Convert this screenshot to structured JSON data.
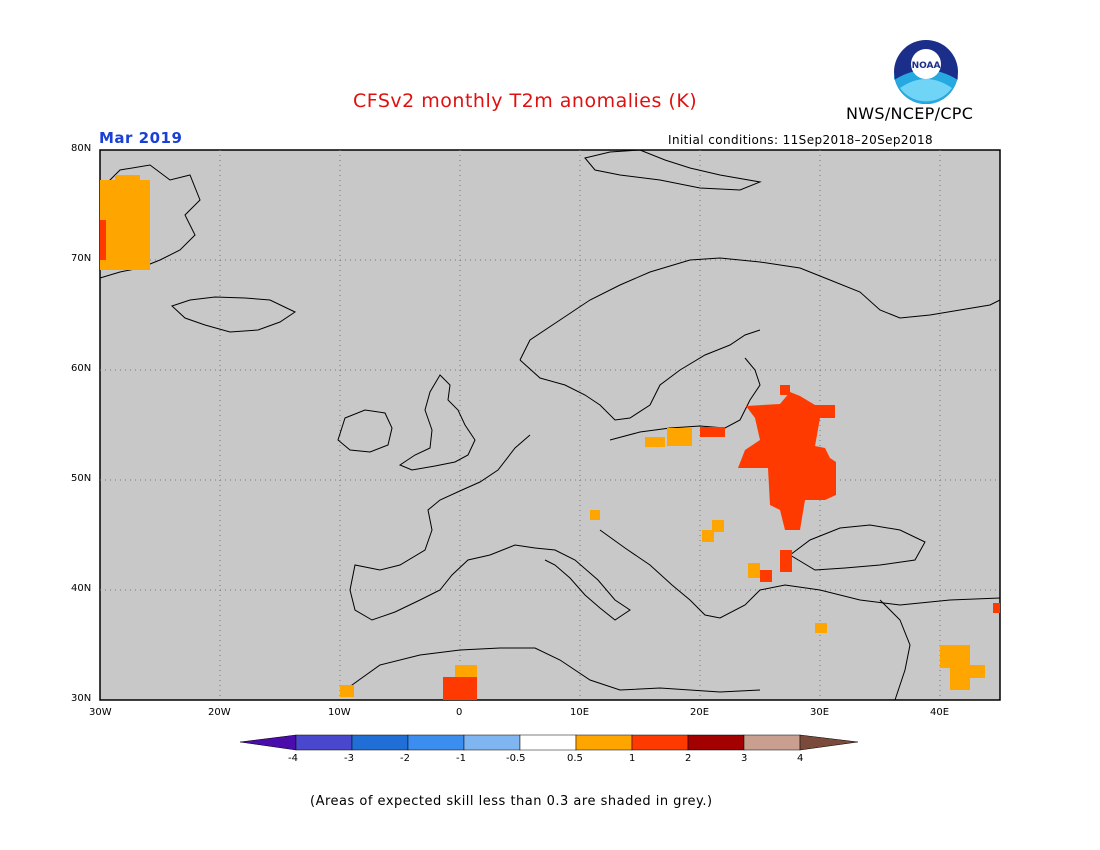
{
  "header": {
    "title": "CFSv2 monthly T2m anomalies (K)",
    "agency": "NWS/NCEP/CPC",
    "period": "Mar 2019",
    "initial_conditions": "Initial conditions: 11Sep2018–20Sep2018",
    "logo_text": "NOAA"
  },
  "colors": {
    "title": "#e01010",
    "period": "#1a3fd6",
    "map_background": "#c8c8c8",
    "coastline": "#000000",
    "grid": "#777777"
  },
  "map": {
    "lon_range": [
      -30,
      45
    ],
    "lat_range": [
      30,
      80
    ],
    "lon_ticks": [
      "30W",
      "20W",
      "10W",
      "0",
      "10E",
      "20E",
      "30E",
      "40E"
    ],
    "lat_ticks": [
      "80N",
      "70N",
      "60N",
      "50N",
      "40N",
      "30N"
    ],
    "anomaly_regions": [
      {
        "name": "greenland-east",
        "category": "0.5 to 1",
        "lon": [
          -29,
          -26
        ],
        "lat": [
          70,
          77
        ]
      },
      {
        "name": "baltic-poland",
        "category": "0.5 to 1",
        "lon": [
          16,
          20
        ],
        "lat": [
          53.5,
          55
        ]
      },
      {
        "name": "belarus-ukraine",
        "category": "1 to 2",
        "lon": [
          25,
          32
        ],
        "lat": [
          46,
          57
        ]
      },
      {
        "name": "romania-bulgaria",
        "category": "1 to 2",
        "lon": [
          26,
          28
        ],
        "lat": [
          41,
          43
        ]
      },
      {
        "name": "middle-east",
        "category": "0.5 to 1",
        "lon": [
          40,
          43
        ],
        "lat": [
          31,
          35
        ]
      },
      {
        "name": "north-africa",
        "category": "1 to 2",
        "lon": [
          -1,
          1
        ],
        "lat": [
          30,
          32
        ]
      }
    ]
  },
  "colorbar": {
    "labels": [
      "-4",
      "-3",
      "-2",
      "-1",
      "-0.5",
      "0.5",
      "1",
      "2",
      "3",
      "4"
    ],
    "colors": [
      "#4a0dab",
      "#4a47cf",
      "#1f6fd6",
      "#3b8ef0",
      "#7fb6f2",
      "#ffffff",
      "#ffa500",
      "#ff3a00",
      "#a30000",
      "#c9a08f",
      "#7a4a3a"
    ]
  },
  "footnote": "(Areas of expected skill less than 0.3 are shaded in grey.)"
}
